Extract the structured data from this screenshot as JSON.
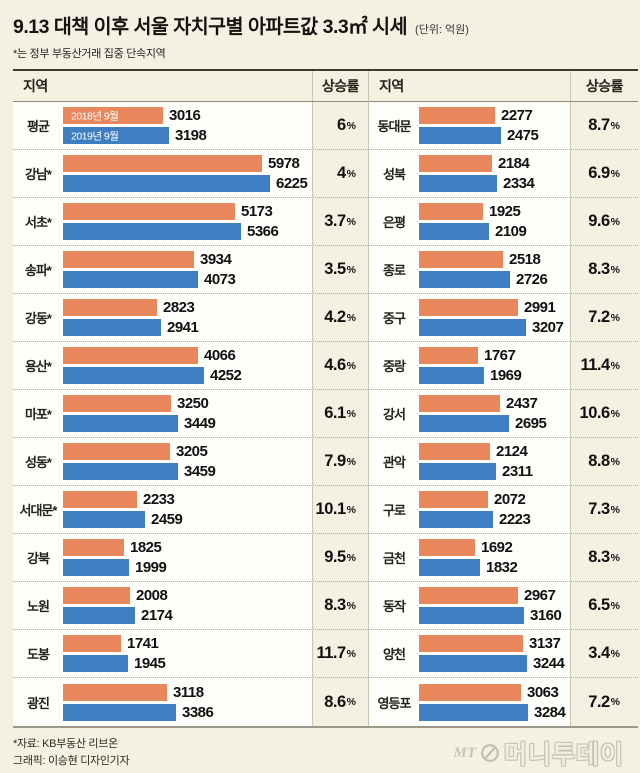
{
  "title": {
    "text": "9.13 대책 이후 서울 자치구별 아파트값 3.3㎡ 시세",
    "unit": "(단위: 억원)"
  },
  "subtitle": "*는 정부 부동산거래 집중 단속지역",
  "columns": {
    "region": "지역",
    "rate": "상승률"
  },
  "legend": {
    "y2018": "2018년 9월",
    "y2019": "2019년 9월"
  },
  "percent_sign": "%",
  "colors": {
    "bar2018": "#e8875c",
    "bar2019": "#3e7ec1",
    "background": "#f4f1e2",
    "row_background": "#fefefb"
  },
  "footer": {
    "source": "*자료: KB부동산 리브온",
    "credit": "그래픽: 이승현 디자인기자",
    "logo_mt": "MT",
    "logo_kr": "머니투데이"
  },
  "chart_data": {
    "type": "bar",
    "title": "9.13 대책 이후 서울 자치구별 아파트값 3.3㎡ 시세",
    "unit_label": "(단위: 억원)",
    "series_names": [
      "2018년 9월",
      "2019년 9월"
    ],
    "legend_position": "inside-first-row-bars",
    "left_rows": [
      {
        "region": "평균",
        "v2018": 3016,
        "v2019": 3198,
        "rate": "6"
      },
      {
        "region": "강남*",
        "v2018": 5978,
        "v2019": 6225,
        "rate": "4"
      },
      {
        "region": "서초*",
        "v2018": 5173,
        "v2019": 5366,
        "rate": "3.7"
      },
      {
        "region": "송파*",
        "v2018": 3934,
        "v2019": 4073,
        "rate": "3.5"
      },
      {
        "region": "강동*",
        "v2018": 2823,
        "v2019": 2941,
        "rate": "4.2"
      },
      {
        "region": "용산*",
        "v2018": 4066,
        "v2019": 4252,
        "rate": "4.6"
      },
      {
        "region": "마포*",
        "v2018": 3250,
        "v2019": 3449,
        "rate": "6.1"
      },
      {
        "region": "성동*",
        "v2018": 3205,
        "v2019": 3459,
        "rate": "7.9"
      },
      {
        "region": "서대문*",
        "v2018": 2233,
        "v2019": 2459,
        "rate": "10.1"
      },
      {
        "region": "강북",
        "v2018": 1825,
        "v2019": 1999,
        "rate": "9.5"
      },
      {
        "region": "노원",
        "v2018": 2008,
        "v2019": 2174,
        "rate": "8.3"
      },
      {
        "region": "도봉",
        "v2018": 1741,
        "v2019": 1945,
        "rate": "11.7"
      },
      {
        "region": "광진",
        "v2018": 3118,
        "v2019": 3386,
        "rate": "8.6"
      }
    ],
    "right_rows": [
      {
        "region": "동대문",
        "v2018": 2277,
        "v2019": 2475,
        "rate": "8.7"
      },
      {
        "region": "성북",
        "v2018": 2184,
        "v2019": 2334,
        "rate": "6.9"
      },
      {
        "region": "은평",
        "v2018": 1925,
        "v2019": 2109,
        "rate": "9.6"
      },
      {
        "region": "종로",
        "v2018": 2518,
        "v2019": 2726,
        "rate": "8.3"
      },
      {
        "region": "중구",
        "v2018": 2991,
        "v2019": 3207,
        "rate": "7.2"
      },
      {
        "region": "중랑",
        "v2018": 1767,
        "v2019": 1969,
        "rate": "11.4"
      },
      {
        "region": "강서",
        "v2018": 2437,
        "v2019": 2695,
        "rate": "10.6"
      },
      {
        "region": "관악",
        "v2018": 2124,
        "v2019": 2311,
        "rate": "8.8"
      },
      {
        "region": "구로",
        "v2018": 2072,
        "v2019": 2223,
        "rate": "7.3"
      },
      {
        "region": "금천",
        "v2018": 1692,
        "v2019": 1832,
        "rate": "8.3"
      },
      {
        "region": "동작",
        "v2018": 2967,
        "v2019": 3160,
        "rate": "6.5"
      },
      {
        "region": "양천",
        "v2018": 3137,
        "v2019": 3244,
        "rate": "3.4"
      },
      {
        "region": "영등포",
        "v2018": 3063,
        "v2019": 3284,
        "rate": "7.2"
      }
    ]
  }
}
